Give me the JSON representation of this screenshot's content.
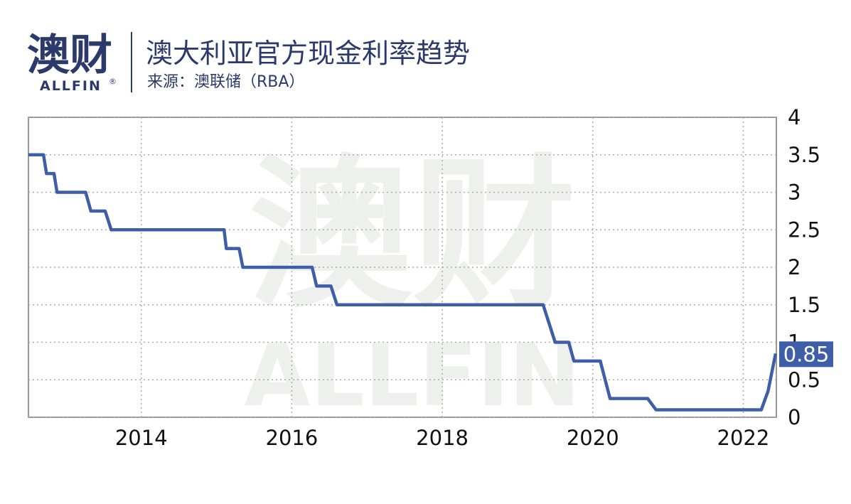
{
  "logo": {
    "cn": "澳财",
    "en": "ALLFIN",
    "mark": "®"
  },
  "chart_data": {
    "type": "line",
    "title": "澳大利亚官方现金利率趋势",
    "subtitle": "来源：澳联储（RBA）",
    "x": [
      2012.5,
      2012.7,
      2012.74,
      2012.84,
      2012.88,
      2013.26,
      2013.33,
      2013.52,
      2013.6,
      2015.1,
      2015.13,
      2015.3,
      2015.35,
      2016.27,
      2016.33,
      2016.52,
      2016.6,
      2019.34,
      2019.5,
      2019.68,
      2019.75,
      2020.1,
      2020.23,
      2020.73,
      2020.84,
      2022.24,
      2022.33,
      2022.43
    ],
    "series": [
      {
        "color": "#3f5ea8",
        "values": [
          3.5,
          3.5,
          3.25,
          3.25,
          3.0,
          3.0,
          2.75,
          2.75,
          2.5,
          2.5,
          2.25,
          2.25,
          2.0,
          2.0,
          1.75,
          1.75,
          1.5,
          1.5,
          1.0,
          1.0,
          0.75,
          0.75,
          0.25,
          0.25,
          0.1,
          0.1,
          0.35,
          0.85
        ]
      }
    ],
    "xlim": [
      2012.5,
      2022.44
    ],
    "xticks": [
      2014,
      2016,
      2018,
      2020,
      2022
    ],
    "ylim": [
      0,
      4
    ],
    "yticks": [
      0,
      0.5,
      1,
      1.5,
      2,
      2.5,
      3,
      3.5,
      4
    ],
    "grid": true
  }
}
